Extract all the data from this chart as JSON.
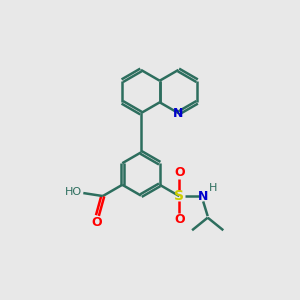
{
  "background_color": "#e8e8e8",
  "bond_color": "#2d6e5e",
  "bond_width": 1.8,
  "N_color": "#0000cc",
  "O_color": "#ff0000",
  "S_color": "#cccc00",
  "figsize": [
    3.0,
    3.0
  ],
  "dpi": 100,
  "xlim": [
    0,
    10
  ],
  "ylim": [
    0,
    10
  ]
}
